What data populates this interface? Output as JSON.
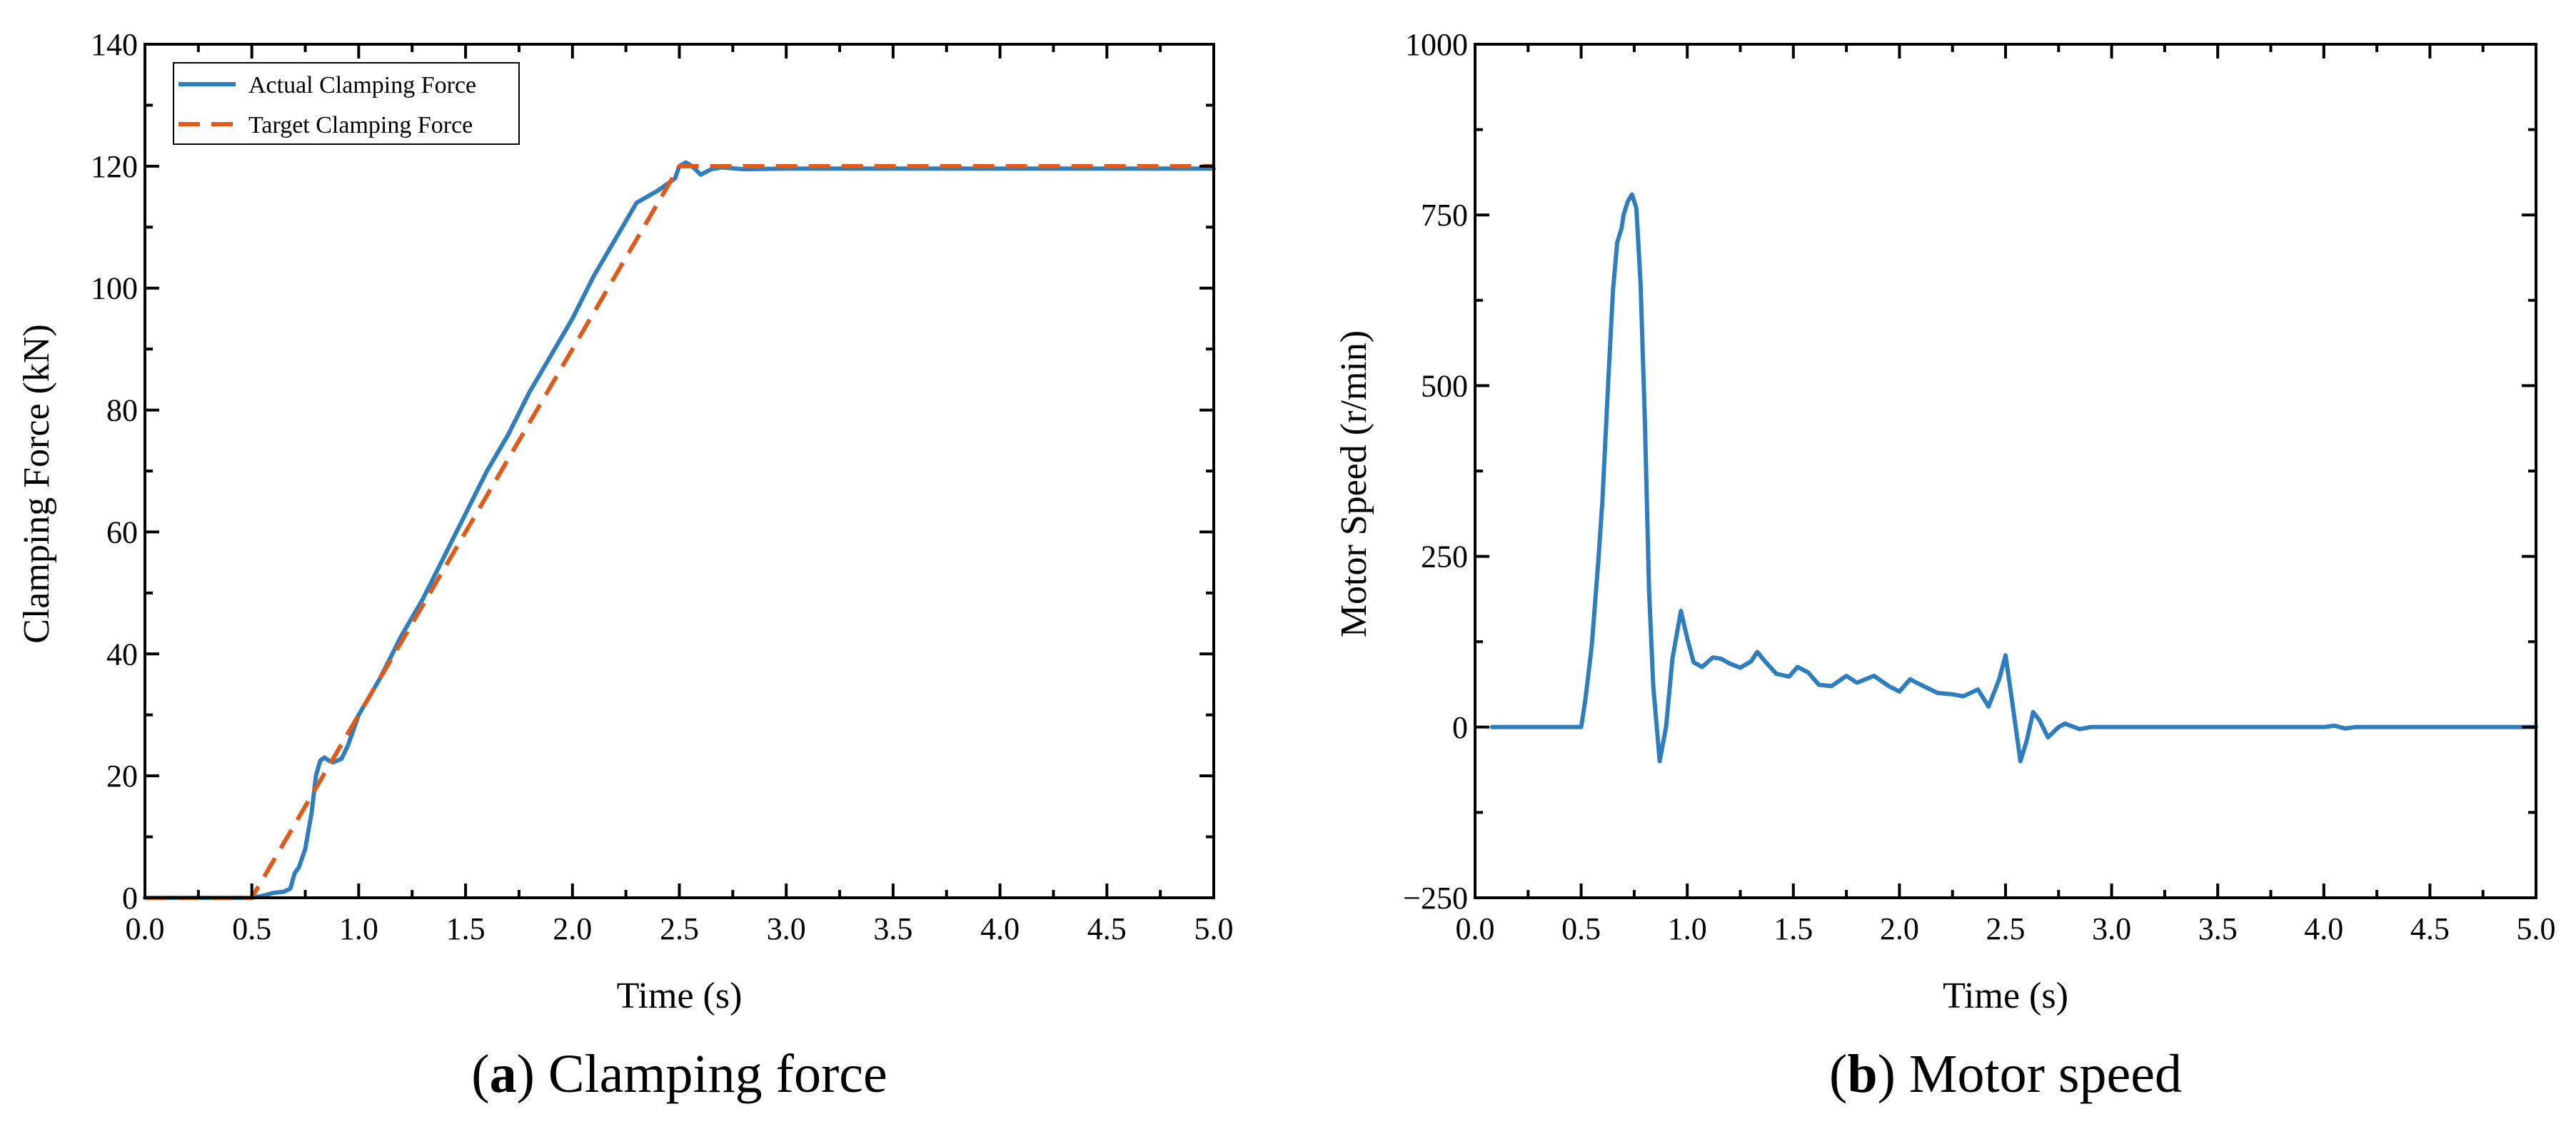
{
  "chart_data": [
    {
      "type": "line",
      "caption_letter": "a",
      "caption_text": " Clamping force",
      "xlabel": "Time (s)",
      "ylabel": "Clamping Force (kN)",
      "xlim": [
        0,
        5
      ],
      "ylim": [
        0,
        140
      ],
      "xticks": [
        "0.0",
        "0.5",
        "1.0",
        "1.5",
        "2.0",
        "2.5",
        "3.0",
        "3.5",
        "4.0",
        "4.5",
        "5.0"
      ],
      "yticks": [
        "0",
        "20",
        "40",
        "60",
        "80",
        "100",
        "120",
        "140"
      ],
      "grid": false,
      "legend_placement": "top-left",
      "series": [
        {
          "name": "Actual Clamping Force",
          "color": "#2e7ebf",
          "style": "solid",
          "x": [
            0,
            0.5,
            0.55,
            0.6,
            0.65,
            0.68,
            0.7,
            0.72,
            0.75,
            0.78,
            0.8,
            0.82,
            0.84,
            0.86,
            0.88,
            0.92,
            0.95,
            1.0,
            1.1,
            1.2,
            1.3,
            1.4,
            1.5,
            1.6,
            1.7,
            1.8,
            1.9,
            2.0,
            2.1,
            2.2,
            2.3,
            2.4,
            2.48,
            2.5,
            2.53,
            2.56,
            2.6,
            2.65,
            2.7,
            2.8,
            3.0,
            4.0,
            5.0
          ],
          "y": [
            0,
            0,
            0.3,
            0.8,
            1,
            1.5,
            4,
            5,
            8,
            14,
            20,
            22.5,
            23,
            22.5,
            22.2,
            22.8,
            25,
            30,
            36,
            43,
            49,
            56,
            63,
            70,
            76,
            83,
            89,
            95,
            102,
            108,
            114,
            116,
            118,
            120,
            120.6,
            120,
            118.6,
            119.5,
            119.8,
            119.5,
            119.6,
            119.6,
            119.6
          ]
        },
        {
          "name": "Target Clamping Force",
          "color": "#e05a1a",
          "style": "dashed",
          "x": [
            0,
            0.5,
            2.5,
            5.0
          ],
          "y": [
            0,
            0,
            120,
            120
          ]
        }
      ]
    },
    {
      "type": "line",
      "caption_letter": "b",
      "caption_text": " Motor speed",
      "xlabel": "Time (s)",
      "ylabel": "Motor Speed (r/min)",
      "xlim": [
        0,
        5
      ],
      "ylim": [
        -250,
        1000
      ],
      "xticks": [
        "0.0",
        "0.5",
        "1.0",
        "1.5",
        "2.0",
        "2.5",
        "3.0",
        "3.5",
        "4.0",
        "4.5",
        "5.0"
      ],
      "yticks": [
        "−250",
        "0",
        "250",
        "500",
        "750",
        "1000"
      ],
      "grid": false,
      "series": [
        {
          "color": "#2e7ebf",
          "style": "solid",
          "x": [
            0.08,
            0.5,
            0.52,
            0.55,
            0.58,
            0.6,
            0.63,
            0.65,
            0.67,
            0.69,
            0.7,
            0.72,
            0.74,
            0.76,
            0.78,
            0.8,
            0.82,
            0.84,
            0.87,
            0.9,
            0.93,
            0.97,
            1.0,
            1.03,
            1.07,
            1.12,
            1.16,
            1.2,
            1.25,
            1.3,
            1.33,
            1.37,
            1.42,
            1.48,
            1.52,
            1.57,
            1.62,
            1.68,
            1.75,
            1.8,
            1.88,
            1.95,
            2.0,
            2.05,
            2.1,
            2.18,
            2.25,
            2.3,
            2.37,
            2.42,
            2.47,
            2.5,
            2.53,
            2.57,
            2.6,
            2.63,
            2.66,
            2.7,
            2.75,
            2.78,
            2.85,
            2.9,
            3.0,
            4.0,
            4.05,
            4.1,
            4.15,
            5.0
          ],
          "y": [
            0,
            0,
            40,
            120,
            240,
            330,
            520,
            640,
            710,
            730,
            750,
            770,
            780,
            760,
            650,
            450,
            200,
            60,
            -50,
            0,
            100,
            170,
            130,
            95,
            88,
            102,
            100,
            93,
            87,
            96,
            110,
            95,
            78,
            74,
            88,
            80,
            62,
            60,
            75,
            65,
            75,
            60,
            52,
            70,
            62,
            50,
            48,
            45,
            55,
            30,
            70,
            105,
            40,
            -50,
            -20,
            22,
            10,
            -15,
            0,
            5,
            -3,
            0,
            0,
            0,
            2,
            -2,
            0,
            0
          ]
        }
      ]
    }
  ]
}
